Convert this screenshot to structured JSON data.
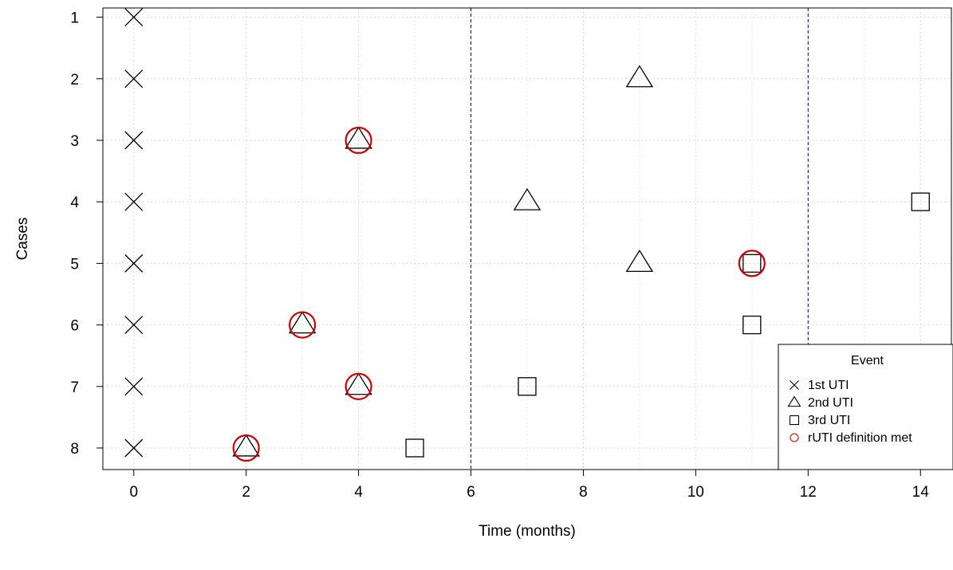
{
  "chart_data": {
    "type": "scatter",
    "xlabel": "Time (months)",
    "ylabel": "Cases",
    "xlim": [
      -0.55,
      14.55
    ],
    "ylim": [
      0.85,
      8.35
    ],
    "y_reversed": true,
    "xticks": [
      0,
      2,
      4,
      6,
      8,
      10,
      12,
      14
    ],
    "yticks": [
      1,
      2,
      3,
      4,
      5,
      6,
      7,
      8
    ],
    "grid": true,
    "vlines": [
      6,
      12
    ],
    "vline_color": "#00008b",
    "series": [
      {
        "name": "1st UTI",
        "marker": "cross",
        "color": "#000000",
        "points": [
          {
            "x": 0,
            "y": 1
          },
          {
            "x": 0,
            "y": 2
          },
          {
            "x": 0,
            "y": 3
          },
          {
            "x": 0,
            "y": 4
          },
          {
            "x": 0,
            "y": 5
          },
          {
            "x": 0,
            "y": 6
          },
          {
            "x": 0,
            "y": 7
          },
          {
            "x": 0,
            "y": 8
          }
        ]
      },
      {
        "name": "2nd UTI",
        "marker": "triangle",
        "color": "#000000",
        "points": [
          {
            "x": 9,
            "y": 2
          },
          {
            "x": 4,
            "y": 3
          },
          {
            "x": 7,
            "y": 4
          },
          {
            "x": 9,
            "y": 5
          },
          {
            "x": 3,
            "y": 6
          },
          {
            "x": 4,
            "y": 7
          },
          {
            "x": 2,
            "y": 8
          }
        ]
      },
      {
        "name": "3rd UTI",
        "marker": "square",
        "color": "#000000",
        "points": [
          {
            "x": 14,
            "y": 4
          },
          {
            "x": 11,
            "y": 5
          },
          {
            "x": 11,
            "y": 6
          },
          {
            "x": 7,
            "y": 7
          },
          {
            "x": 5,
            "y": 8
          }
        ]
      },
      {
        "name": "rUTI definition met",
        "marker": "circle",
        "color": "#cc0000",
        "points": [
          {
            "x": 4,
            "y": 3
          },
          {
            "x": 11,
            "y": 5
          },
          {
            "x": 3,
            "y": 6
          },
          {
            "x": 4,
            "y": 7
          },
          {
            "x": 2,
            "y": 8
          }
        ]
      }
    ],
    "legend": {
      "title": "Event",
      "placement": "bottom-right"
    }
  }
}
